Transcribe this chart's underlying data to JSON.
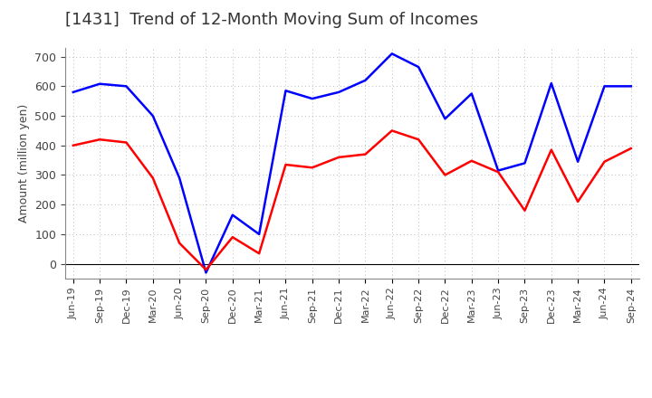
{
  "title": "[1431]  Trend of 12-Month Moving Sum of Incomes",
  "ylabel": "Amount (million yen)",
  "x_labels": [
    "Jun-19",
    "Sep-19",
    "Dec-19",
    "Mar-20",
    "Jun-20",
    "Sep-20",
    "Dec-20",
    "Mar-21",
    "Jun-21",
    "Sep-21",
    "Dec-21",
    "Mar-22",
    "Jun-22",
    "Sep-22",
    "Dec-22",
    "Mar-23",
    "Jun-23",
    "Sep-23",
    "Dec-23",
    "Mar-24",
    "Jun-24",
    "Sep-24"
  ],
  "ordinary_income": [
    580,
    608,
    600,
    500,
    290,
    -30,
    165,
    100,
    585,
    558,
    580,
    620,
    710,
    665,
    490,
    575,
    315,
    340,
    610,
    345,
    600,
    600
  ],
  "net_income": [
    400,
    420,
    410,
    290,
    70,
    -20,
    90,
    35,
    335,
    325,
    360,
    370,
    450,
    420,
    300,
    348,
    310,
    180,
    385,
    210,
    345,
    390
  ],
  "ordinary_income_color": "#0000ff",
  "net_income_color": "#ff0000",
  "background_color": "#ffffff",
  "grid_color": "#bbbbbb",
  "ylim": [
    -50,
    730
  ],
  "yticks": [
    0,
    100,
    200,
    300,
    400,
    500,
    600,
    700
  ],
  "line_width": 1.8,
  "title_color": "#333333",
  "title_fontsize": 13
}
